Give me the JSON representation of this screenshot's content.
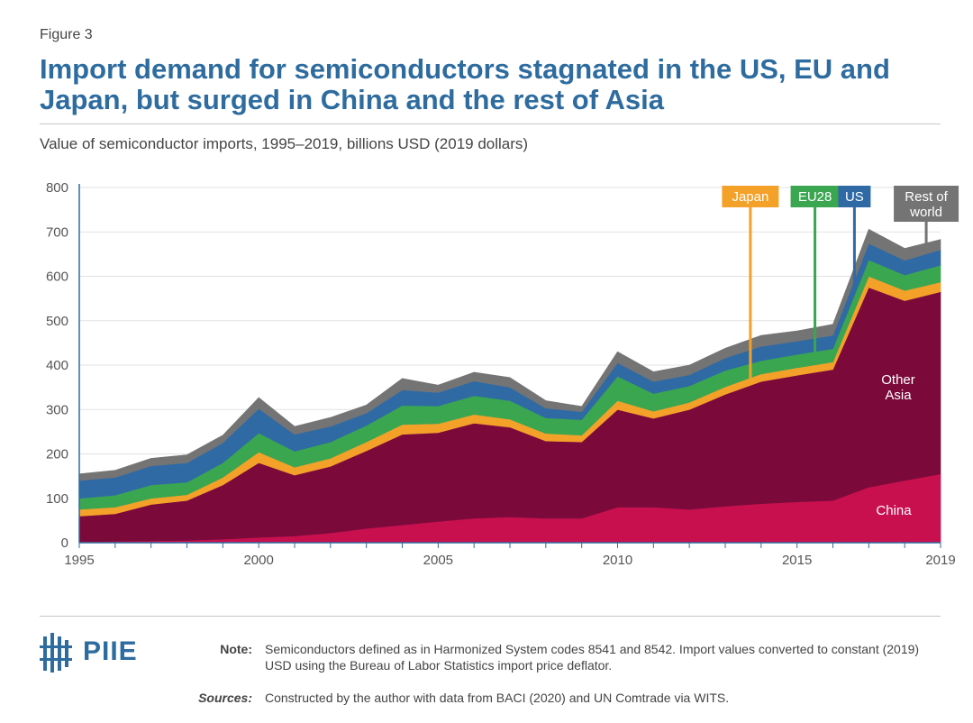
{
  "figure_label": "Figure 3",
  "title": "Import demand for semiconductors stagnated in the US, EU and Japan, but surged in China and the rest of Asia",
  "subtitle": "Value of semiconductor imports, 1995–2019, billions USD (2019 dollars)",
  "colors": {
    "china": "#c8104f",
    "other_asia": "#7b0a3b",
    "japan": "#f4a12a",
    "eu28": "#3aa650",
    "us": "#2f6aa5",
    "rest_of_world": "#747474",
    "title": "#2e6c9f"
  },
  "chart_data": {
    "type": "area",
    "stacked": true,
    "x": [
      1995,
      1996,
      1997,
      1998,
      1999,
      2000,
      2001,
      2002,
      2003,
      2004,
      2005,
      2006,
      2007,
      2008,
      2009,
      2010,
      2011,
      2012,
      2013,
      2014,
      2015,
      2016,
      2017,
      2018,
      2019
    ],
    "x_ticks": [
      1995,
      2000,
      2005,
      2010,
      2015,
      2019
    ],
    "ylim": [
      0,
      800
    ],
    "y_ticks": [
      0,
      100,
      200,
      300,
      400,
      500,
      600,
      700,
      800
    ],
    "grid": "horizontal",
    "series": [
      {
        "name": "China",
        "key": "china",
        "label": "China",
        "values": [
          2,
          3,
          4,
          5,
          8,
          12,
          15,
          22,
          32,
          40,
          48,
          55,
          58,
          55,
          55,
          80,
          80,
          75,
          82,
          88,
          92,
          95,
          125,
          140,
          155
        ]
      },
      {
        "name": "Other Asia",
        "key": "other_asia",
        "label": "Other Asia",
        "values": [
          58,
          62,
          82,
          90,
          122,
          168,
          137,
          150,
          175,
          204,
          200,
          214,
          202,
          174,
          172,
          220,
          200,
          225,
          252,
          275,
          285,
          295,
          450,
          405,
          410
        ]
      },
      {
        "name": "Japan",
        "key": "japan",
        "label": "Japan",
        "values": [
          15,
          15,
          14,
          13,
          17,
          24,
          18,
          18,
          20,
          22,
          20,
          20,
          18,
          17,
          15,
          20,
          16,
          16,
          17,
          17,
          17,
          17,
          25,
          23,
          22
        ]
      },
      {
        "name": "EU28",
        "key": "eu28",
        "label": "EU28",
        "values": [
          25,
          27,
          30,
          28,
          33,
          43,
          36,
          37,
          37,
          43,
          40,
          42,
          42,
          35,
          35,
          55,
          40,
          37,
          37,
          30,
          30,
          30,
          37,
          35,
          38
        ]
      },
      {
        "name": "US",
        "key": "us",
        "label": "US",
        "values": [
          40,
          40,
          43,
          44,
          45,
          55,
          38,
          35,
          28,
          35,
          30,
          33,
          30,
          22,
          18,
          30,
          27,
          25,
          28,
          32,
          30,
          30,
          37,
          33,
          35
        ]
      },
      {
        "name": "Rest of world",
        "key": "rest_of_world",
        "label": "Rest of world",
        "values": [
          15,
          16,
          17,
          18,
          17,
          25,
          18,
          20,
          18,
          26,
          17,
          20,
          22,
          17,
          12,
          25,
          22,
          22,
          22,
          25,
          23,
          25,
          32,
          27,
          23
        ]
      }
    ],
    "in_chart_labels": {
      "other_asia": "Other Asia",
      "china": "China"
    },
    "callouts": [
      {
        "key": "japan",
        "label": "Japan",
        "x": 2013.7
      },
      {
        "key": "eu28",
        "label": "EU28",
        "x": 2015.5
      },
      {
        "key": "us",
        "label": "US",
        "x": 2016.6
      },
      {
        "key": "rest_of_world",
        "label": "Rest of world",
        "x": 2018.6
      }
    ]
  },
  "footer": {
    "logo_text": "PIIE",
    "note_label": "Note:",
    "note_text": "Semiconductors defined as in Harmonized System codes 8541 and 8542. Import values converted to constant (2019) USD using the Bureau of Labor Statistics import price deflator.",
    "sources_label": "Sources:",
    "sources_text": "Constructed by the author with data from BACI (2020) and UN Comtrade via WITS."
  }
}
